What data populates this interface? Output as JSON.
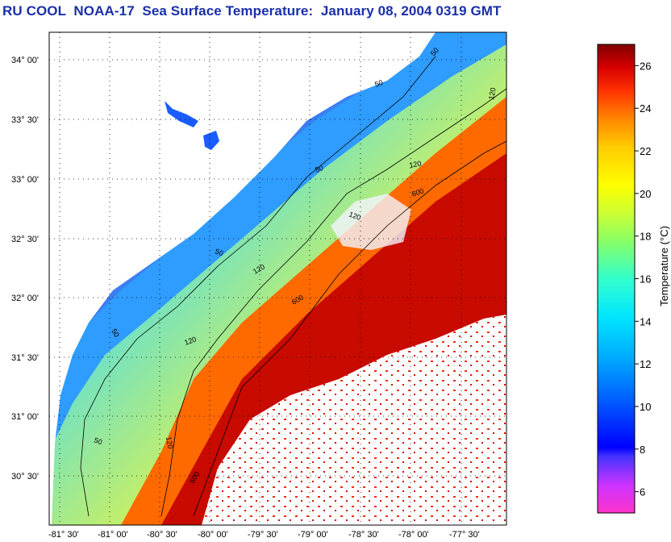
{
  "title": "RU COOL  NOAA-17  Sea Surface Temperature:  January 08, 2004 0319 GMT",
  "map": {
    "lat_ticks": [
      "34° 00'",
      "33° 30'",
      "33° 00'",
      "32° 30'",
      "32° 00'",
      "31° 30'",
      "31° 00'",
      "30° 30'"
    ],
    "lon_ticks": [
      "-81° 30'",
      "-81° 00'",
      "-80° 30'",
      "-80° 00'",
      "-79° 30'",
      "-79° 00'",
      "-78° 30'",
      "-78° 00'",
      "-77° 30'"
    ],
    "contour_labels": [
      "50",
      "50",
      "50",
      "50",
      "50",
      "50",
      "120",
      "120",
      "120",
      "120",
      "120",
      "120",
      "600",
      "600",
      "600"
    ],
    "land_color": "#ffffff",
    "cloud_color": "#ffffff",
    "grid": "dotted"
  },
  "colorbar": {
    "label": "Temperature (°C)",
    "ticks": [
      "26",
      "24",
      "22",
      "20",
      "18",
      "16",
      "14",
      "12",
      "10",
      "8",
      "6"
    ],
    "min": 5,
    "max": 27,
    "colors": [
      "#ff33cc",
      "#cc33ff",
      "#3333ff",
      "#0000ff",
      "#0066ff",
      "#00aaff",
      "#00e6ff",
      "#66ffaa",
      "#ccff33",
      "#ffff00",
      "#ffcc00",
      "#ff8800",
      "#ff3300",
      "#e60000",
      "#a00000",
      "#800000"
    ]
  }
}
